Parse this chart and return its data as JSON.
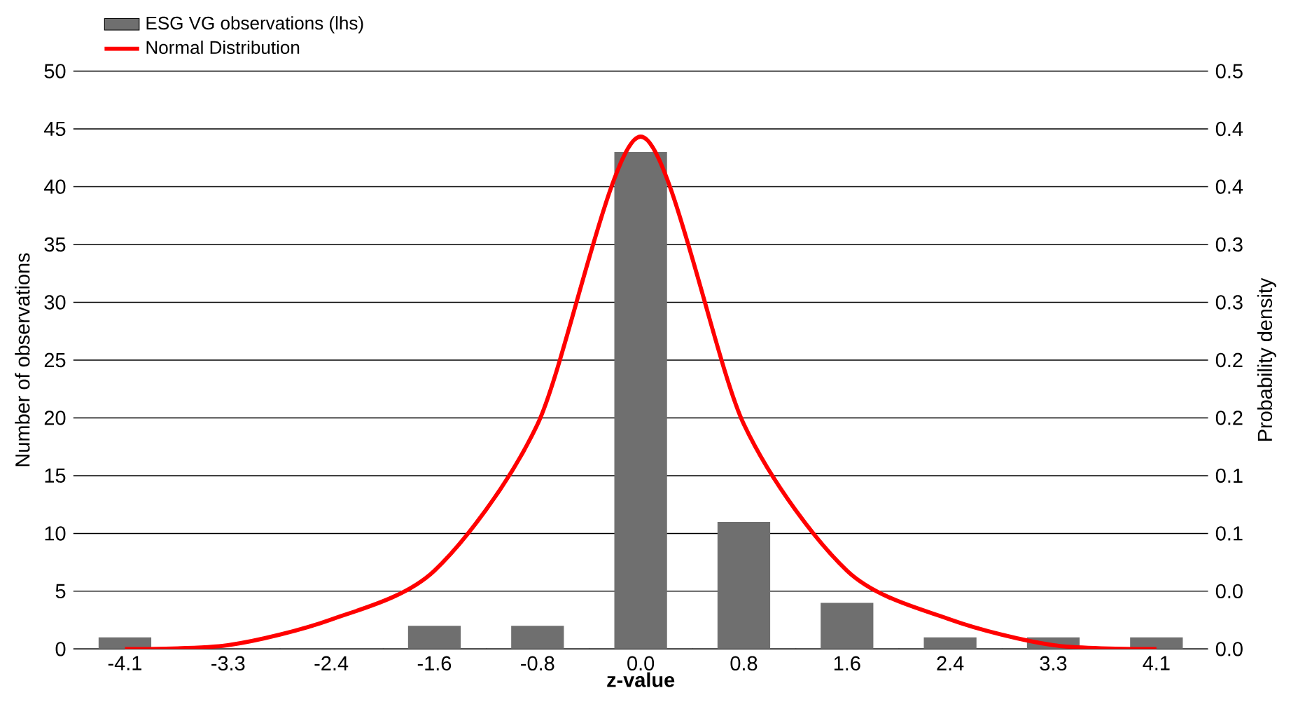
{
  "chart_data": {
    "type": "bar",
    "xlabel": "z-value",
    "ylabel": "Number of observations",
    "y2label": "Probability density",
    "categories": [
      "-4.1",
      "-3.3",
      "-2.4",
      "-1.6",
      "-0.8",
      "0.0",
      "0.8",
      "1.6",
      "2.4",
      "3.3",
      "4.1"
    ],
    "series": [
      {
        "name": "ESG VG observations (lhs)",
        "color": "#6f6f6f",
        "values": [
          1,
          0,
          0,
          2,
          2,
          43,
          11,
          4,
          1,
          1,
          1
        ]
      },
      {
        "name": "Normal Distribution",
        "type": "line",
        "axis": "y2",
        "color": "#ff0000",
        "values": [
          0.0,
          0.003,
          0.023,
          0.061,
          0.175,
          0.399,
          0.175,
          0.061,
          0.023,
          0.003,
          0.0
        ]
      }
    ],
    "ylim": [
      0,
      50
    ],
    "yticks": [
      0,
      5,
      10,
      15,
      20,
      25,
      30,
      35,
      40,
      45,
      50
    ],
    "y2lim": [
      0,
      0.45
    ],
    "y2ticks": [
      {
        "value": 0,
        "label": "0.0"
      },
      {
        "value": 0.045,
        "label": "0.0"
      },
      {
        "value": 0.09,
        "label": "0.1"
      },
      {
        "value": 0.135,
        "label": "0.1"
      },
      {
        "value": 0.18,
        "label": "0.2"
      },
      {
        "value": 0.225,
        "label": "0.2"
      },
      {
        "value": 0.27,
        "label": "0.3"
      },
      {
        "value": 0.315,
        "label": "0.3"
      },
      {
        "value": 0.36,
        "label": "0.4"
      },
      {
        "value": 0.405,
        "label": "0.4"
      },
      {
        "value": 0.45,
        "label": "0.5"
      }
    ],
    "grid": "y",
    "legend": "top left",
    "marker": "none",
    "line_style": "solid"
  }
}
